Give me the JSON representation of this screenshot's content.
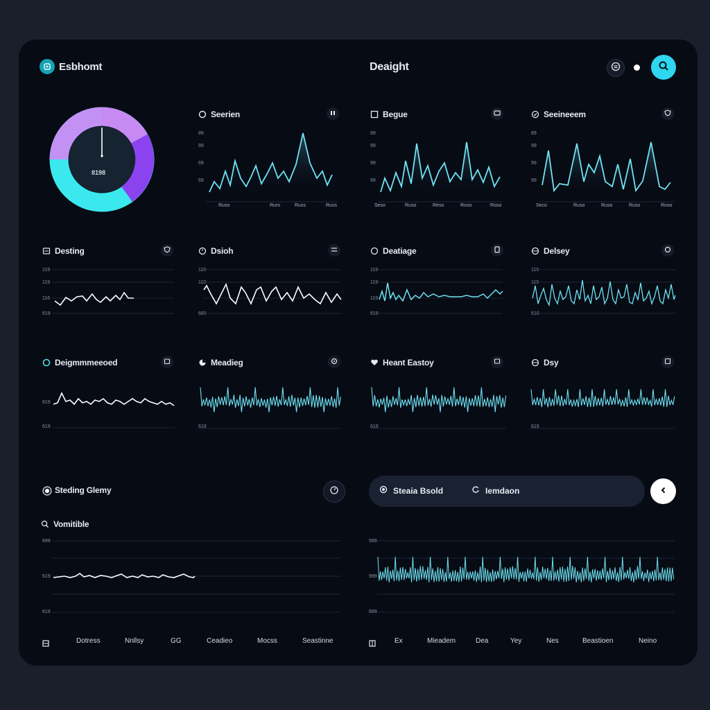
{
  "header": {
    "brand": "Esbhomt",
    "title": "Deaight",
    "icons": [
      "brand-logo-icon",
      "menu-circle-icon",
      "status-dot-icon",
      "search-icon"
    ]
  },
  "colors": {
    "background": "#070b14",
    "accent": "#2fd6ef",
    "line": "#6fe3f2",
    "gauge_pink": "#e38cf3",
    "gauge_purple": "#8b43f0",
    "gauge_cyan": "#3be8ee"
  },
  "gauge": {
    "value": "8198"
  },
  "panels": {
    "p1": {
      "title": "Seerien",
      "ticks": [
        "89",
        "99",
        "69",
        "69"
      ],
      "xticks": [
        "Ruso",
        "Ruro",
        "Russ",
        "Russ"
      ]
    },
    "p2": {
      "title": "Begue",
      "ticks": [
        "89",
        "99",
        "99",
        "89"
      ],
      "xticks": [
        "Seso",
        "Ruso",
        "Reso",
        "Roso",
        "Roso"
      ]
    },
    "p3": {
      "title": "Seeineeem",
      "ticks": [
        "89",
        "99",
        "99",
        "99"
      ],
      "xticks": [
        "Seco",
        "Ruso",
        "Ruso",
        "Ruso",
        "Roso"
      ]
    },
    "p4": {
      "title": "Desting",
      "ticks": [
        "119",
        "119",
        "116",
        "619"
      ]
    },
    "p5": {
      "title": "Dsioh",
      "ticks": [
        "119",
        "119",
        "689"
      ]
    },
    "p6": {
      "title": "Deatiage",
      "ticks": [
        "119",
        "119",
        "119",
        "619"
      ]
    },
    "p7": {
      "title": "Delsey",
      "ticks": [
        "119",
        "119",
        "619"
      ]
    },
    "p8": {
      "title": "Deigmmmeeoed",
      "ticks": [
        "619",
        "619"
      ]
    },
    "p9": {
      "title": "Meadieg",
      "ticks": [
        "619"
      ]
    },
    "p10": {
      "title": "Heant Eastoy",
      "ticks": [
        "619"
      ]
    },
    "p11": {
      "title": "Dsy",
      "ticks": [
        "619"
      ]
    }
  },
  "bottom_left": {
    "title": "Steding Glemy",
    "subtitle": "Vomitible",
    "ticks": [
      "699",
      "619",
      "619"
    ],
    "xlabels": [
      "Dotress",
      "Nnllsy",
      "GG",
      "Ceadieo",
      "Mocss",
      "Seastinne"
    ]
  },
  "bottom_right": {
    "pill_item_1": "Steaia Bsold",
    "pill_item_2": "Iemdaon",
    "ticks": [
      "589",
      "999",
      "689"
    ],
    "xlabels": [
      "Ex",
      "Mieadem",
      "Dea",
      "Yey",
      "Nes",
      "Beastioen",
      "Neino"
    ]
  }
}
